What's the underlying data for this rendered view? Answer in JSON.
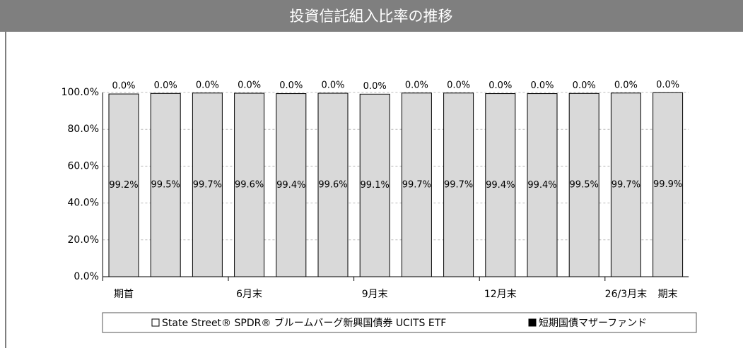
{
  "chart_data": {
    "type": "stacked_bar",
    "title": "投資信託組入比率の推移",
    "categories": [
      "期首",
      null,
      null,
      "6月末",
      null,
      null,
      "9月末",
      null,
      null,
      "12月末",
      null,
      null,
      "26/3月末",
      "期末"
    ],
    "series": [
      {
        "name": "State Street® SPDR® ブルームバーグ新興国債券 UCITS ETF",
        "color": "#d9d9d9",
        "values": [
          99.2,
          99.5,
          99.7,
          99.6,
          99.4,
          99.6,
          99.1,
          99.7,
          99.7,
          99.4,
          99.4,
          99.5,
          99.7,
          99.9
        ],
        "value_labels": [
          "99.2%",
          "99.5%",
          "99.7%",
          "99.6%",
          "99.4%",
          "99.6%",
          "99.1%",
          "99.7%",
          "99.7%",
          "99.4%",
          "99.4%",
          "99.5%",
          "99.7%",
          "99.9%"
        ]
      },
      {
        "name": "短期国債マザーファンド",
        "color": "#000000",
        "values": [
          0,
          0,
          0,
          0,
          0,
          0,
          0,
          0,
          0,
          0,
          0,
          0,
          0,
          0
        ],
        "value_labels": [
          "0.0%",
          "0.0%",
          "0.0%",
          "0.0%",
          "0.0%",
          "0.0%",
          "0.0%",
          "0.0%",
          "0.0%",
          "0.0%",
          "0.0%",
          "0.0%",
          "0.0%",
          "0.0%"
        ]
      }
    ],
    "ylim": [
      0,
      100
    ],
    "yticks": [
      {
        "value": 0,
        "label": "0.0%"
      },
      {
        "value": 20,
        "label": "20.0%"
      },
      {
        "value": 40,
        "label": "40.0%"
      },
      {
        "value": 60,
        "label": "60.0%"
      },
      {
        "value": 80,
        "label": "80.0%"
      },
      {
        "value": 100,
        "label": "100.0%"
      }
    ],
    "grid": true
  }
}
